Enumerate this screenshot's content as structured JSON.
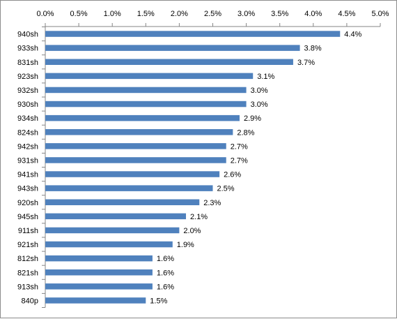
{
  "chart_data": {
    "type": "bar",
    "orientation": "horizontal",
    "categories": [
      "940sh",
      "933sh",
      "831sh",
      "923sh",
      "932sh",
      "930sh",
      "934sh",
      "824sh",
      "942sh",
      "931sh",
      "941sh",
      "943sh",
      "920sh",
      "945sh",
      "911sh",
      "921sh",
      "812sh",
      "821sh",
      "913sh",
      "840p"
    ],
    "values": [
      4.4,
      3.8,
      3.7,
      3.1,
      3.0,
      3.0,
      2.9,
      2.8,
      2.7,
      2.7,
      2.6,
      2.5,
      2.3,
      2.1,
      2.0,
      1.9,
      1.6,
      1.6,
      1.6,
      1.5
    ],
    "value_labels": [
      "4.4%",
      "3.8%",
      "3.7%",
      "3.1%",
      "3.0%",
      "3.0%",
      "2.9%",
      "2.8%",
      "2.7%",
      "2.7%",
      "2.6%",
      "2.5%",
      "2.3%",
      "2.1%",
      "2.0%",
      "1.9%",
      "1.6%",
      "1.6%",
      "1.6%",
      "1.5%"
    ],
    "x_ticks": [
      "0.0%",
      "0.5%",
      "1.0%",
      "1.5%",
      "2.0%",
      "2.5%",
      "3.0%",
      "3.5%",
      "4.0%",
      "4.5%",
      "5.0%"
    ],
    "xlim": [
      0,
      5.0
    ],
    "x_axis_position": "top",
    "grid": false,
    "title": "",
    "xlabel": "",
    "ylabel": "",
    "bar_color": "#4f81bd",
    "axis_color": "#868686"
  }
}
